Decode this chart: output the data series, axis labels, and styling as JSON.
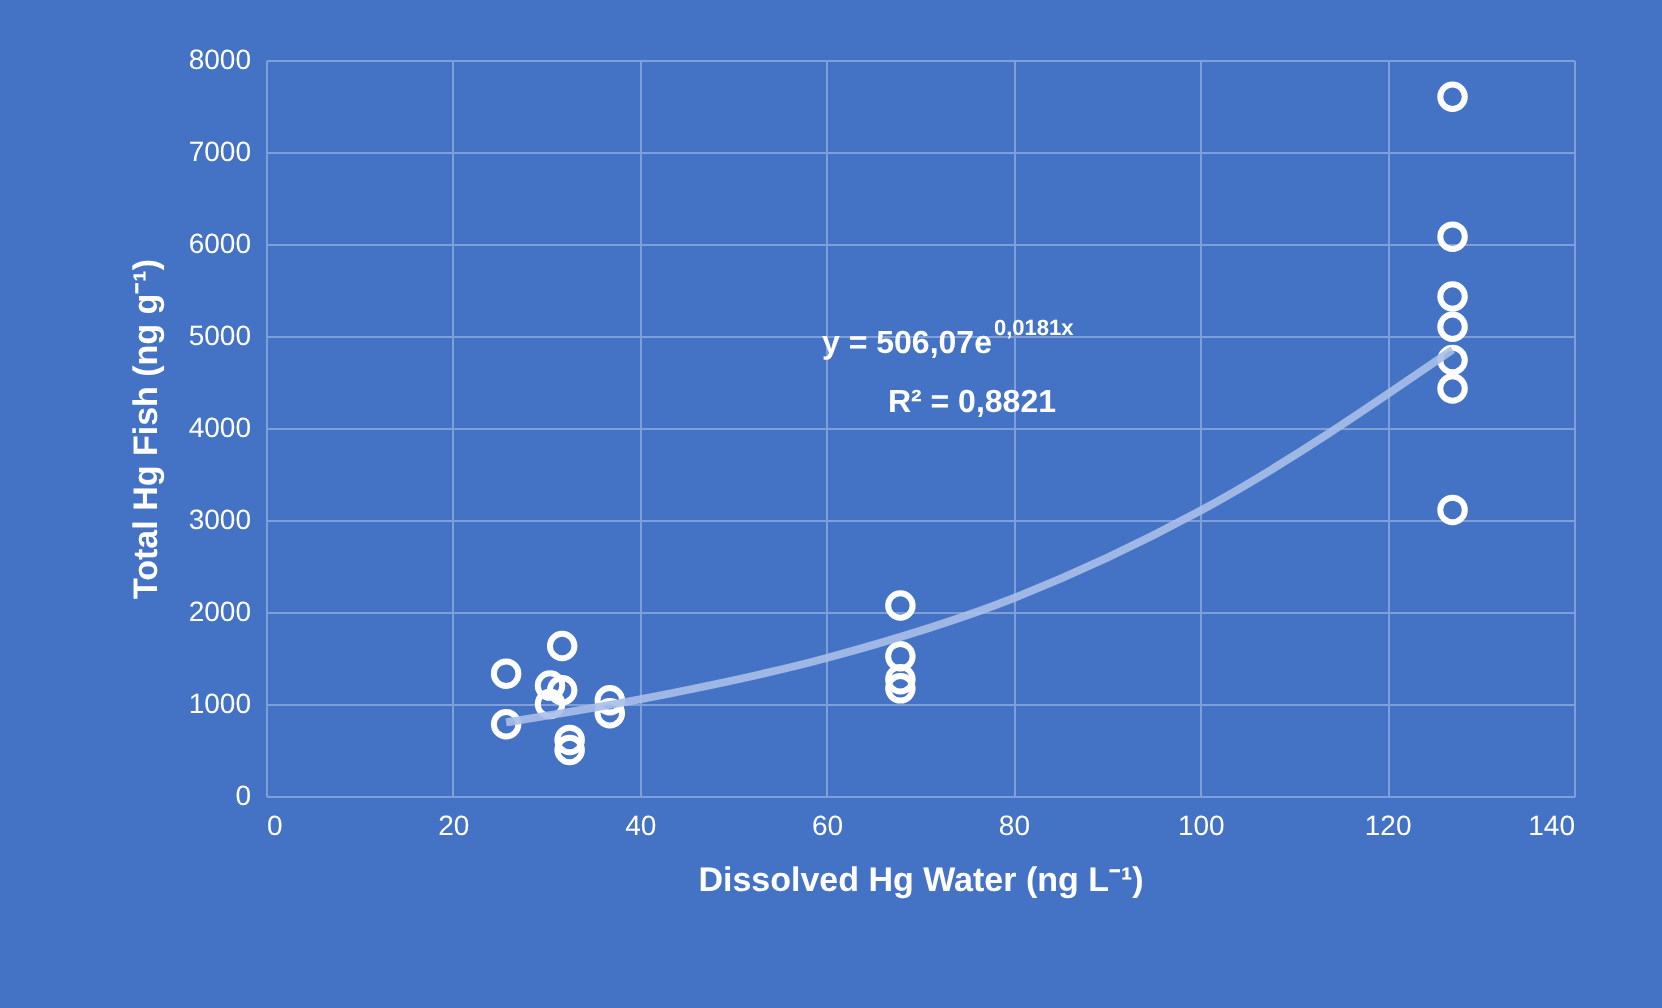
{
  "chart_data": {
    "type": "scatter",
    "xlabel": "Dissolved Hg Water (ng L⁻¹)",
    "ylabel": "Total Hg Fish (ng g⁻¹)",
    "xlim": [
      0,
      140
    ],
    "xticks": [
      0,
      20,
      40,
      60,
      80,
      100,
      120,
      140
    ],
    "ylim": [
      0,
      8000
    ],
    "yticks": [
      0,
      1000,
      2000,
      3000,
      4000,
      5000,
      6000,
      7000,
      8000
    ],
    "grid": true,
    "series": [
      {
        "marker": "circle",
        "color": "#ffffff",
        "x": [
          25.7,
          25.7,
          31.7,
          30.4,
          31.7,
          30.4,
          36.8,
          36.8,
          32.5,
          32.5,
          67.9,
          67.9,
          67.9,
          67.9,
          127,
          127,
          127,
          127,
          127,
          127,
          127
        ],
        "values": [
          1330,
          780,
          1630,
          1200,
          1150,
          1000,
          1040,
          900,
          610,
          500,
          2070,
          1520,
          1270,
          1170,
          7600,
          6080,
          5430,
          5100,
          4740,
          4430,
          3110
        ]
      },
      {
        "type": "line",
        "marker": "none",
        "color": "#a9bfe8",
        "x": [
          25.7,
          40,
          60,
          80,
          100,
          127
        ],
        "values": [
          800,
          1050,
          1500,
          2150,
          3100,
          4850
        ]
      }
    ],
    "annotations": [
      "y = 506,07e$^{0,0181x}$",
      "R² = 0,8821"
    ]
  }
}
